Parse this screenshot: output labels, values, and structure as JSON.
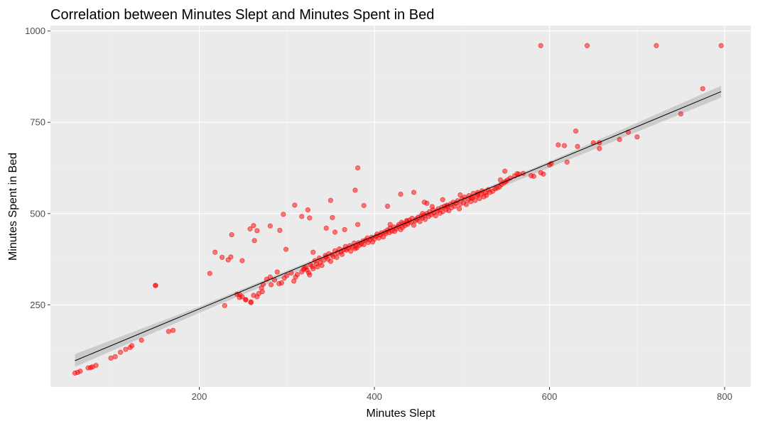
{
  "chart_data": {
    "type": "scatter",
    "title": "Correlation between Minutes Slept and Minutes Spent in Bed",
    "xlabel": "Minutes Slept",
    "ylabel": "Minutes Spent in Bed",
    "xlim": [
      30,
      830
    ],
    "ylim": [
      25,
      1015
    ],
    "x_ticks": [
      200,
      400,
      600,
      800
    ],
    "x_tick_labels": [
      "200",
      "400",
      "600",
      "800"
    ],
    "y_ticks": [
      250,
      500,
      750,
      1000
    ],
    "y_tick_labels": [
      "250",
      "500",
      "750",
      "1000"
    ],
    "grid": true,
    "legend": "none",
    "colors": {
      "panel_background": "#ebebeb",
      "grid_major": "#ffffff",
      "grid_minor": "#f4f4f4",
      "points": "#ff0000",
      "fit_line": "#000000",
      "confidence_band": "#bdbdbd"
    },
    "fit_line": {
      "x": [
        58,
        796
      ],
      "y": [
        97,
        834
      ]
    },
    "confidence_band": {
      "x": [
        58,
        200,
        400,
        600,
        796
      ],
      "upper": [
        115,
        245,
        442,
        643,
        850
      ],
      "lower": [
        80,
        228,
        430,
        626,
        818
      ]
    },
    "series": [
      {
        "x": [
          58,
          61,
          64,
          73,
          76,
          78,
          82,
          99,
          104,
          110,
          116,
          121,
          123,
          134,
          150,
          165,
          170,
          212,
          218,
          226,
          229,
          233,
          236,
          237,
          243,
          246,
          249,
          253,
          259,
          262,
          263,
          271,
          273,
          277,
          281,
          282,
          286,
          289,
          291,
          294,
          297,
          300,
          305,
          308,
          310,
          312,
          317,
          319,
          320,
          322,
          323,
          325,
          326,
          327,
          329,
          330,
          332,
          334,
          335,
          337,
          338,
          340,
          342,
          344,
          345,
          347,
          348,
          350,
          352,
          353,
          355,
          357,
          358,
          360,
          362,
          363,
          365,
          367,
          368,
          370,
          372,
          373,
          375,
          377,
          378,
          379,
          380,
          382,
          383,
          385,
          387,
          388,
          390,
          392,
          393,
          395,
          397,
          398,
          400,
          402,
          403,
          405,
          407,
          408,
          410,
          412,
          413,
          415,
          417,
          418,
          420,
          422,
          423,
          425,
          427,
          428,
          430,
          432,
          433,
          435,
          437,
          438,
          440,
          442,
          443,
          445,
          447,
          448,
          450,
          452,
          453,
          455,
          457,
          458,
          460,
          462,
          463,
          465,
          467,
          468,
          470,
          472,
          473,
          475,
          477,
          478,
          480,
          482,
          483,
          485,
          487,
          488,
          490,
          492,
          493,
          495,
          497,
          498,
          500,
          502,
          503,
          505,
          507,
          508,
          510,
          512,
          513,
          515,
          517,
          518,
          520,
          522,
          523,
          525,
          527,
          528,
          530,
          532,
          535,
          538,
          540,
          543,
          545,
          548,
          550,
          552,
          555,
          560,
          565,
          570,
          590,
          593,
          600,
          602,
          610,
          617,
          620,
          630,
          632,
          650,
          657,
          657,
          680,
          690,
          700,
          750,
          775,
          590,
          643,
          722,
          796,
          150,
          258,
          266,
          281,
          292,
          296,
          309,
          317,
          324,
          326,
          350,
          352,
          378,
          381,
          388,
          415,
          430,
          445,
          246,
          249,
          253,
          259,
          262,
          266,
          268,
          272,
          299,
          330,
          345,
          355,
          366,
          381,
          457,
          460,
          478,
          511,
          418,
          431,
          437,
          455,
          466,
          483,
          498,
          518,
          544,
          549,
          563,
          579,
          582
        ],
        "y": [
          63,
          65,
          68,
          77,
          78,
          80,
          84,
          104,
          108,
          120,
          128,
          133,
          138,
          153,
          303,
          177,
          180,
          336,
          394,
          380,
          248,
          373,
          381,
          442,
          279,
          270,
          371,
          264,
          256,
          467,
          426,
          296,
          306,
          320,
          326,
          305,
          318,
          340,
          308,
          310,
          323,
          330,
          337,
          315,
          326,
          333,
          340,
          347,
          350,
          352,
          345,
          338,
          332,
          360,
          355,
          349,
          371,
          362,
          354,
          378,
          366,
          358,
          372,
          385,
          381,
          375,
          390,
          369,
          387,
          382,
          398,
          380,
          392,
          403,
          395,
          388,
          401,
          410,
          400,
          405,
          412,
          397,
          408,
          419,
          404,
          411,
          406,
          420,
          413,
          417,
          425,
          415,
          427,
          433,
          421,
          428,
          435,
          422,
          430,
          438,
          444,
          433,
          441,
          447,
          436,
          450,
          445,
          455,
          448,
          460,
          452,
          463,
          451,
          458,
          465,
          470,
          456,
          462,
          473,
          467,
          478,
          471,
          482,
          476,
          487,
          468,
          480,
          485,
          490,
          478,
          493,
          488,
          496,
          484,
          500,
          492,
          505,
          497,
          510,
          502,
          494,
          507,
          513,
          501,
          517,
          505,
          520,
          511,
          523,
          508,
          526,
          516,
          531,
          520,
          528,
          535,
          513,
          526,
          540,
          530,
          545,
          525,
          538,
          549,
          533,
          543,
          555,
          536,
          548,
          558,
          541,
          553,
          562,
          546,
          557,
          550,
          565,
          558,
          561,
          568,
          570,
          573,
          580,
          585,
          588,
          592,
          597,
          603,
          608,
          610,
          612,
          608,
          633,
          637,
          688,
          686,
          641,
          726,
          684,
          694,
          678,
          694,
          703,
          723,
          710,
          773,
          842,
          960,
          960,
          960,
          960,
          303,
          458,
          453,
          466,
          454,
          498,
          523,
          492,
          510,
          488,
          536,
          489,
          564,
          625,
          522,
          520,
          553,
          558,
          278,
          272,
          264,
          258,
          276,
          272,
          281,
          286,
          402,
          394,
          460,
          449,
          456,
          470,
          531,
          528,
          538,
          542,
          470,
          476,
          481,
          500,
          519,
          520,
          551,
          553,
          592,
          616,
          609,
          604,
          602
        ]
      }
    ]
  }
}
